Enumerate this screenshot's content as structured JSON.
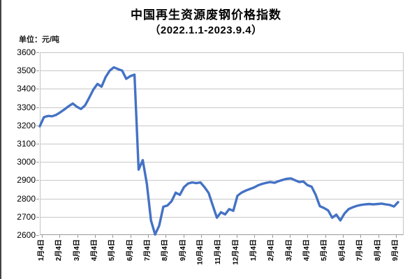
{
  "header": {
    "title_line1": "中国再生资源废钢价格指数",
    "title_line2": "（2022.1.1-2023.9.4）",
    "unit_label": "单位：元/吨"
  },
  "chart_data": {
    "type": "line",
    "title": "中国再生资源废钢价格指数（2022.1.1-2023.9.4）",
    "unit": "元/吨",
    "ylim": [
      2600,
      3600
    ],
    "ytick_step": 100,
    "y_ticks": [
      3600,
      3500,
      3400,
      3300,
      3200,
      3100,
      3000,
      2900,
      2800,
      2700,
      2600
    ],
    "x_labels": [
      "1月4日",
      "2月4日",
      "3月4日",
      "4月4日",
      "5月4日",
      "6月4日",
      "7月4日",
      "8月4日",
      "9月4日",
      "10月4日",
      "11月4日",
      "12月4日",
      "1月4日",
      "2月4日",
      "3月4日",
      "4月4日",
      "5月4日",
      "6月4日",
      "7月4日",
      "8月4日",
      "9月4日"
    ],
    "grid": true,
    "legend_position": "none",
    "line_color": "#4472C4",
    "grid_color": "#C8C8C8",
    "axis_color": "#9A9A9A",
    "series": [
      {
        "name": "中国再生资源废钢价格指数",
        "interval": "weekly",
        "values": [
          3195,
          3245,
          3252,
          3250,
          3258,
          3272,
          3288,
          3305,
          3320,
          3302,
          3290,
          3310,
          3352,
          3396,
          3427,
          3412,
          3465,
          3500,
          3518,
          3508,
          3500,
          3455,
          3470,
          3478,
          2958,
          3010,
          2880,
          2680,
          2603,
          2652,
          2755,
          2762,
          2785,
          2832,
          2820,
          2862,
          2882,
          2888,
          2884,
          2888,
          2862,
          2830,
          2762,
          2695,
          2725,
          2713,
          2742,
          2733,
          2815,
          2832,
          2843,
          2852,
          2860,
          2872,
          2880,
          2886,
          2890,
          2886,
          2895,
          2902,
          2908,
          2910,
          2900,
          2890,
          2893,
          2873,
          2865,
          2820,
          2758,
          2748,
          2735,
          2695,
          2712,
          2680,
          2718,
          2742,
          2752,
          2760,
          2765,
          2768,
          2770,
          2768,
          2770,
          2772,
          2768,
          2765,
          2756,
          2780
        ]
      }
    ]
  }
}
